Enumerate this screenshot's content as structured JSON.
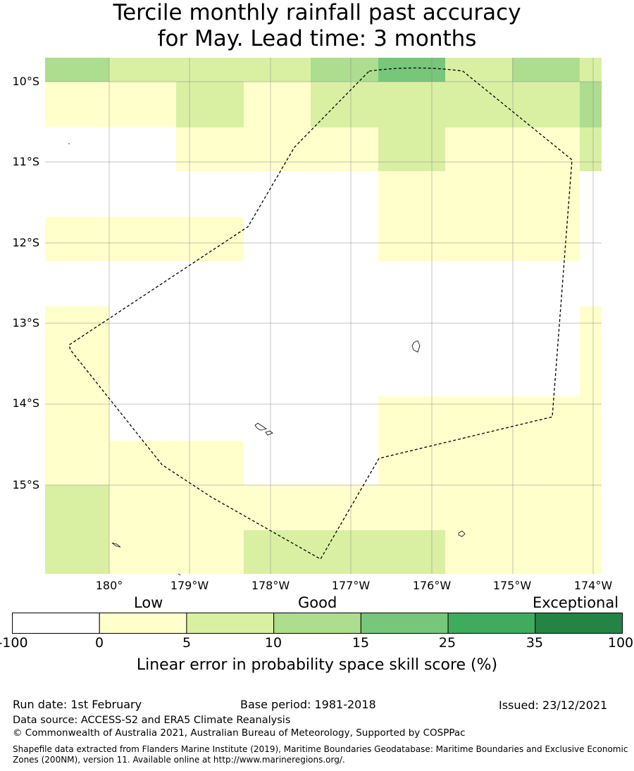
{
  "title": {
    "line1": "Tercile monthly rainfall past accuracy",
    "line2": "for May. Lead time: 3 months"
  },
  "map": {
    "lat_labels": [
      "10°S",
      "11°S",
      "12°S",
      "13°S",
      "14°S",
      "15°S"
    ],
    "lon_labels": [
      "180°",
      "179°W",
      "178°W",
      "177°W",
      "176°W",
      "175°W",
      "174°W"
    ],
    "category_colors": [
      "#ffffff",
      "#ffffcc",
      "#d9f0a3",
      "#addd8e",
      "#78c679",
      "#41ab5d",
      "#238443"
    ]
  },
  "legend": {
    "category_labels": {
      "low": "Low",
      "good": "Good",
      "exceptional": "Exceptional"
    },
    "ticks": [
      "-100",
      "0",
      "5",
      "10",
      "15",
      "25",
      "35",
      "100"
    ],
    "title": "Linear error in probability space skill score (%)",
    "colors": [
      "#ffffff",
      "#ffffcc",
      "#d9f0a3",
      "#addd8e",
      "#78c679",
      "#41ab5d",
      "#238443"
    ]
  },
  "footer": {
    "run_date": "Run date: 1st February",
    "base_period": "Base period: 1981-2018",
    "issued": "Issued: 23/12/2021",
    "data_source": "Data source: ACCESS-S2 and ERA5 Climate Reanalysis",
    "copyright": "© Commonwealth of Australia 2021, Australian Bureau of Meteorology, Supported by COSPPac",
    "shapefile_line1": "Shapefile data extracted from Flanders Marine Institute (2019), Maritime Boundaries Geodatabase: Maritime Boundaries and Exclusive Economic",
    "shapefile_line2": "Zones (200NM), version 11. Available online at http://www.marineregions.org/."
  }
}
